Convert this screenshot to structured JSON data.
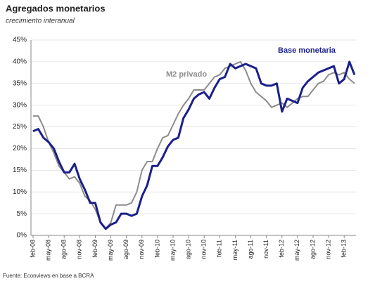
{
  "chart_data": {
    "type": "line",
    "title": "Agregados monetarios",
    "subtitle": "crecimiento interanual",
    "source": "Fuente: Econviews en base a BCRA",
    "categories": [
      "feb-08",
      null,
      null,
      "may-08",
      null,
      null,
      "ago-08",
      null,
      null,
      "nov-08",
      null,
      null,
      "feb-09",
      null,
      null,
      "may-09",
      null,
      null,
      "ago-09",
      null,
      null,
      "nov-09",
      null,
      null,
      "feb-10",
      null,
      null,
      "may-10",
      null,
      null,
      "ago-10",
      null,
      null,
      "nov-10",
      null,
      null,
      "feb-11",
      null,
      null,
      "may-11",
      null,
      null,
      "ago-11",
      null,
      null,
      "nov-11",
      null,
      null,
      "feb-12",
      null,
      null,
      "may-12",
      null,
      null,
      "ago-12",
      null,
      null,
      "nov-12",
      null,
      null,
      "feb-13",
      null,
      null
    ],
    "series": [
      {
        "name": "Base monetaria",
        "color": "#1a1f8c",
        "values": [
          24,
          24.5,
          22.5,
          21.5,
          20,
          17,
          14.5,
          14.5,
          16.5,
          13,
          10.5,
          7.5,
          7.5,
          3,
          1.5,
          2.5,
          3,
          5,
          5,
          4.5,
          5,
          9,
          11.5,
          16,
          16,
          18,
          20.5,
          22,
          22.5,
          27,
          29,
          31.5,
          32.5,
          33,
          31.5,
          34,
          36,
          36.5,
          39.5,
          38.5,
          39,
          39.5,
          39,
          38.5,
          35,
          34.5,
          34.5,
          35,
          28.5,
          31.5,
          31,
          30.5,
          34,
          35.5,
          36.5,
          37.5,
          38,
          38.5,
          39,
          35,
          36,
          40,
          37
        ]
      },
      {
        "name": "M2 privado",
        "color": "#8c8c8c",
        "values": [
          27.5,
          27.5,
          25,
          21.5,
          19,
          16,
          14.5,
          13,
          13.5,
          12,
          9,
          8,
          6,
          3,
          1.5,
          3,
          7,
          7,
          7,
          7.5,
          10,
          15,
          17,
          17,
          20,
          22.5,
          23,
          25.5,
          28,
          30,
          31.5,
          33.5,
          33.5,
          33.5,
          35,
          36.5,
          37,
          38.5,
          39,
          39.5,
          40,
          38,
          35,
          33,
          32,
          31,
          29.5,
          30,
          30.5,
          29.5,
          30.5,
          31.5,
          32,
          32,
          33.5,
          35,
          35.5,
          37,
          37.5,
          37,
          37.5,
          36,
          35
        ]
      }
    ],
    "ylim": [
      0,
      45
    ],
    "yticks": [
      {
        "value": 0,
        "label": "0%"
      },
      {
        "value": 5,
        "label": "5%"
      },
      {
        "value": 10,
        "label": "10%"
      },
      {
        "value": 15,
        "label": "15%"
      },
      {
        "value": 20,
        "label": "20%"
      },
      {
        "value": 25,
        "label": "25%"
      },
      {
        "value": 30,
        "label": "30%"
      },
      {
        "value": 35,
        "label": "35%"
      },
      {
        "value": 40,
        "label": "40%"
      },
      {
        "value": 45,
        "label": "45%"
      }
    ],
    "grid": true
  }
}
